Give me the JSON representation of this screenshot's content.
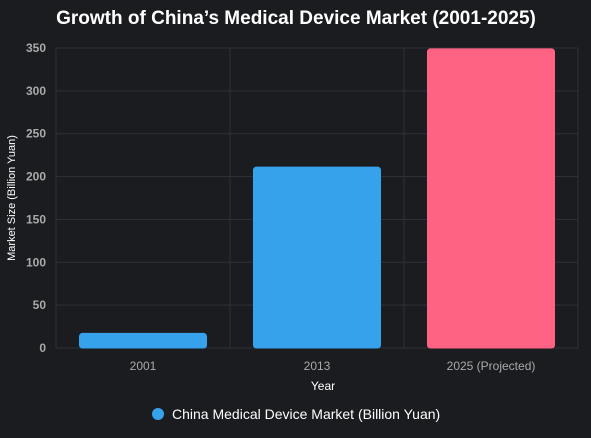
{
  "chart_data": {
    "type": "bar",
    "title": "Growth of China’s Medical Device Market (2001-2025)",
    "xlabel": "Year",
    "ylabel": "Market Size (Billion Yuan)",
    "categories": [
      "2001",
      "2013",
      "2025 (Projected)"
    ],
    "series": [
      {
        "name": "China Medical Device Market (Billion Yuan)",
        "values": [
          17,
          211,
          349
        ],
        "bar_colors": [
          "#36a2eb",
          "#36a2eb",
          "#ff6384"
        ]
      }
    ],
    "ylim": [
      0,
      350
    ],
    "yticks": [
      0,
      50,
      100,
      150,
      200,
      250,
      300,
      350
    ],
    "grid": true,
    "legend_position": "bottom"
  },
  "colors": {
    "background": "#1b1c20",
    "grid": "#2e3036",
    "title": "#ffffff",
    "tick_label": "#aaaaaa",
    "axis_label": "#ffffff",
    "legend_text": "#ffffff",
    "legend_marker": "#36a2eb"
  }
}
